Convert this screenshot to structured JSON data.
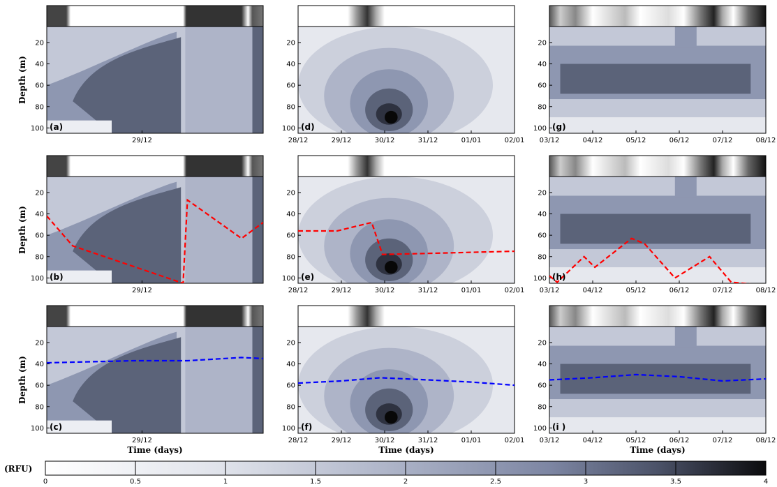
{
  "chart_data": {
    "type": "heatmap",
    "colorbar": {
      "label": "(RFU)",
      "range": [
        0,
        4
      ],
      "ticks": [
        "0",
        "0.5",
        "1",
        "1.5",
        "2",
        "2.5",
        "3",
        "3.5",
        "4"
      ],
      "colors": [
        "#ffffff",
        "#1a1a1f"
      ]
    },
    "y_axis": {
      "label": "Depth (m)",
      "ticks": [
        "20",
        "40",
        "60",
        "80",
        "100"
      ],
      "ylim": [
        105,
        5
      ]
    },
    "x_axis_label": "Time (days)",
    "columns": [
      {
        "id": "left",
        "xlim": [
          0,
          1
        ],
        "x_ticks": [
          "29/12"
        ],
        "x_tick_pos": [
          0.44
        ]
      },
      {
        "id": "middle",
        "xlim": [
          0,
          5
        ],
        "x_ticks": [
          "28/12",
          "29/12",
          "30/12",
          "31/12",
          "01/01",
          "02/01"
        ],
        "x_tick_pos": [
          0,
          1,
          2,
          3,
          4,
          5
        ]
      },
      {
        "id": "right",
        "xlim": [
          0,
          5
        ],
        "x_ticks": [
          "03/12",
          "04/12",
          "05/12",
          "06/12",
          "07/12",
          "08/12"
        ],
        "x_tick_pos": [
          0,
          1,
          2,
          3,
          4,
          5
        ]
      }
    ],
    "panels": [
      {
        "label": "(a)",
        "row": 0,
        "col": 0
      },
      {
        "label": "(d)",
        "row": 0,
        "col": 1
      },
      {
        "label": "(g)",
        "row": 0,
        "col": 2
      },
      {
        "label": "(b)",
        "row": 1,
        "col": 0,
        "line": {
          "color": "#ff0000",
          "x": [
            0,
            0.12,
            0.63,
            0.65,
            0.9,
            1.0
          ],
          "y": [
            42,
            70,
            105,
            27,
            63,
            48
          ]
        }
      },
      {
        "label": "(e)",
        "row": 1,
        "col": 1,
        "line": {
          "color": "#ff0000",
          "x": [
            0,
            0.9,
            1.7,
            1.95,
            3,
            5
          ],
          "y": [
            56,
            56,
            48,
            78,
            77,
            75
          ]
        }
      },
      {
        "label": "(h)",
        "row": 1,
        "col": 2,
        "line": {
          "color": "#ff0000",
          "x": [
            0,
            0.18,
            0.8,
            1.05,
            1.9,
            2.2,
            2.9,
            3.7,
            4.2,
            5
          ],
          "y": [
            98,
            104,
            80,
            90,
            63,
            68,
            100,
            80,
            104,
            107
          ]
        }
      },
      {
        "label": "(c)",
        "row": 2,
        "col": 0,
        "line": {
          "color": "#0000ff",
          "x": [
            0,
            0.4,
            0.65,
            0.9,
            1.0
          ],
          "y": [
            39,
            37,
            37,
            34,
            35
          ]
        }
      },
      {
        "label": "(f)",
        "row": 2,
        "col": 1,
        "line": {
          "color": "#0000ff",
          "x": [
            0,
            1,
            1.9,
            3,
            4,
            5
          ],
          "y": [
            58,
            56,
            53,
            55,
            57,
            60
          ]
        }
      },
      {
        "label": "(i )",
        "row": 2,
        "col": 2,
        "line": {
          "color": "#0000ff",
          "x": [
            0,
            1,
            2,
            3,
            4,
            5
          ],
          "y": [
            55,
            53,
            50,
            52,
            56,
            54
          ]
        }
      }
    ]
  }
}
